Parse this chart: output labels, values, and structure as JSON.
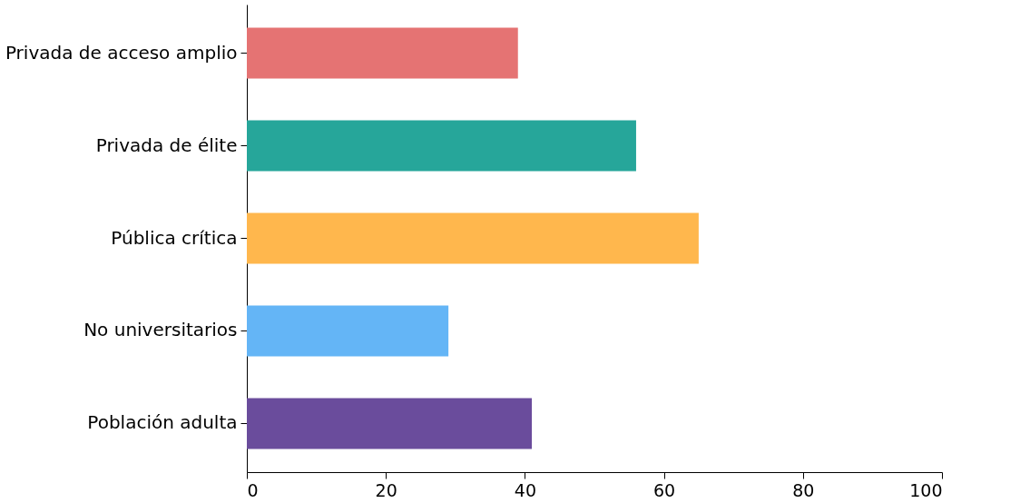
{
  "chart_data": {
    "type": "bar",
    "orientation": "horizontal",
    "categories": [
      "Privada de acceso amplio",
      "Privada de élite",
      "Pública crítica",
      "No universitarios",
      "Población adulta"
    ],
    "values": [
      39,
      56,
      65,
      29,
      41
    ],
    "colors": [
      "#e57373",
      "#26a69a",
      "#ffb74d",
      "#64b5f6",
      "#6a4c9c"
    ],
    "xlim": [
      0,
      100
    ],
    "xticks": [
      0,
      20,
      40,
      60,
      80,
      100
    ],
    "grid": false,
    "legend": false
  }
}
